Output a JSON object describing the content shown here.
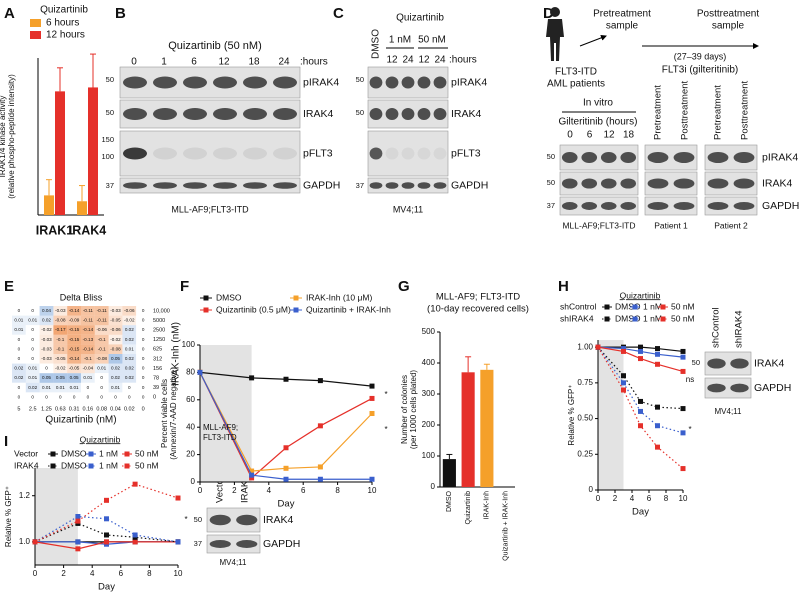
{
  "panel_labels": [
    "A",
    "B",
    "C",
    "D",
    "E",
    "F",
    "G",
    "H",
    "I"
  ],
  "blots": {
    "B": {
      "title": "Quizartinib (50 nM)",
      "lanes": [
        0,
        1,
        6,
        12,
        18,
        24
      ],
      "lane_unit": ":hours",
      "rows": [
        "pIRAK4",
        "IRAK4",
        "pFLT3",
        "GAPDH"
      ],
      "markers": [
        50,
        50,
        150,
        100,
        37
      ],
      "caption": "MLL-AF9;FLT3-ITD"
    },
    "C": {
      "control": "DMSO",
      "treatment": "Quizartinib",
      "doses": [
        "1 nM",
        "50 nM"
      ],
      "lanes": [
        12,
        24,
        12,
        24
      ],
      "lane_unit": ":hours",
      "rows": [
        "pIRAK4",
        "IRAK4",
        "pFLT3",
        "GAPDH"
      ],
      "markers": [
        50,
        50,
        37
      ],
      "caption": "MV4;11"
    },
    "D": {
      "patients_label": [
        "FLT3-ITD",
        "AML patients"
      ],
      "pre_sample": [
        "Pretreatment",
        "sample"
      ],
      "post_sample": [
        "Posttreatment",
        "sample"
      ],
      "interval": "(27–39 days)",
      "drug": "FLT3i (gilteritinib)",
      "in_vitro": "In vitro",
      "lanes_title": "Gilteritinib (hours)",
      "lanes": [
        0,
        6,
        12,
        18
      ],
      "patient_lanes": [
        "Pretreatment",
        "Posttreatment"
      ],
      "rows": [
        "pIRAK4",
        "IRAK4",
        "GAPDH"
      ],
      "markers": [
        50,
        50,
        37
      ],
      "captions": [
        "MLL-AF9;FLT3-ITD",
        "Patient 1",
        "Patient 2"
      ]
    },
    "H": {
      "lanes": [
        "shControl",
        "shIRAK4"
      ],
      "rows": [
        "IRAK4",
        "GAPDH"
      ],
      "markers": [
        50
      ],
      "caption": "MV4;11"
    },
    "I": {
      "lanes": [
        "Vector",
        "IRAK4"
      ],
      "rows": [
        "IRAK4",
        "GAPDH"
      ],
      "markers": [
        50,
        37
      ],
      "caption": "MV4;11"
    }
  },
  "chart_data": [
    {
      "type": "bar",
      "legend_title": "Quizartinib",
      "ylabel": [
        "IRAK1/4 kinase activity",
        "(relative phospho-peptide intensity)"
      ],
      "categories": [
        "IRAK1",
        "IRAK4"
      ],
      "ylim": [
        0,
        0.8
      ],
      "series": [
        {
          "name": "6 hours",
          "color": "#f5a02a",
          "values": [
            0.1,
            0.07
          ],
          "errors": [
            0.08,
            0.08
          ]
        },
        {
          "name": "12 hours",
          "color": "#e5302a",
          "values": [
            0.63,
            0.65
          ],
          "errors": [
            0.12,
            0.17
          ]
        }
      ]
    },
    {
      "type": "heatmap",
      "title": "Delta Bliss",
      "xlabel": "Quizartinib (nM)",
      "ylabel": "IRAK-Inh (nM)",
      "x_labels": [
        5,
        2.5,
        1.25,
        0.63,
        0.31,
        0.16,
        0.08,
        0.04,
        0.02,
        0
      ],
      "y_labels": [
        {
          "value": 10000,
          "label": "10,000"
        },
        5000,
        2500,
        1250,
        625,
        312,
        156,
        78,
        39,
        0
      ],
      "values": [
        [
          0,
          0,
          0.04,
          -0.03,
          -0.14,
          -0.11,
          -0.11,
          -0.03,
          -0.06,
          0
        ],
        [
          0.01,
          0.01,
          0.02,
          -0.08,
          -0.09,
          -0.11,
          -0.11,
          -0.05,
          -0.02,
          0
        ],
        [
          0.01,
          0,
          -0.02,
          -0.17,
          -0.15,
          -0.14,
          -0.06,
          -0.06,
          0.02,
          0
        ],
        [
          0,
          0,
          -0.03,
          -0.1,
          -0.15,
          -0.13,
          -0.1,
          -0.02,
          0.02,
          0
        ],
        [
          0,
          0,
          -0.03,
          -0.1,
          -0.15,
          -0.14,
          -0.1,
          -0.08,
          0.01,
          0
        ],
        [
          0,
          0,
          -0.03,
          -0.05,
          -0.14,
          -0.1,
          -0.08,
          0.05,
          0.02,
          0
        ],
        [
          0.02,
          0.01,
          0,
          -0.02,
          -0.05,
          -0.04,
          0.01,
          0.02,
          0.02,
          0
        ],
        [
          0.02,
          0.01,
          0.05,
          0.05,
          0.05,
          0.01,
          0,
          0.02,
          0.02,
          0
        ],
        [
          0,
          0.02,
          0.01,
          0.01,
          0.01,
          0,
          0,
          0.01,
          0,
          0
        ],
        [
          0,
          0,
          0,
          0,
          0,
          0,
          0,
          0,
          0,
          0
        ]
      ]
    },
    {
      "type": "line",
      "xlabel": "Day",
      "ylabel": [
        "Percent viable cells",
        "(Annexin/7-AAD negative)"
      ],
      "xlim": [
        0,
        10
      ],
      "ylim": [
        0,
        100
      ],
      "xticks": [
        0,
        2,
        4,
        6,
        8,
        10
      ],
      "yticks": [
        0,
        20,
        40,
        60,
        80,
        100
      ],
      "shaded_x": [
        0,
        3
      ],
      "annotations": [
        "MLL-AF9;",
        "FLT3-ITD",
        "*",
        "*"
      ],
      "x": [
        0,
        3,
        5,
        7,
        10
      ],
      "series": [
        {
          "name": "DMSO",
          "color": "#111111",
          "line_style": "solid",
          "values": [
            80,
            76,
            75,
            74,
            70
          ]
        },
        {
          "name": "Quizartinib (0.5 μM)",
          "color": "#e5302a",
          "line_style": "solid",
          "values": [
            80,
            3,
            25,
            41,
            61
          ]
        },
        {
          "name": "IRAK-Inh (10 μM)",
          "color": "#f5a02a",
          "line_style": "solid",
          "values": [
            80,
            8,
            10,
            11,
            50
          ]
        },
        {
          "name": "Quizartinib + IRAK-Inh",
          "color": "#3a5fcd",
          "line_style": "solid",
          "values": [
            80,
            5,
            2,
            2,
            2
          ]
        }
      ]
    },
    {
      "type": "bar",
      "title": [
        "MLL-AF9; FLT3-ITD",
        "(10-day recovered cells)"
      ],
      "ylabel": [
        "Number of colonies",
        "(per 1000 cells plated)"
      ],
      "categories": [
        "DMSO",
        "Quizartinib",
        "IRAK-Inh",
        "Quizartinib + IRAK-Inh"
      ],
      "values": [
        90,
        370,
        378,
        0
      ],
      "errors": [
        15,
        50,
        18,
        0
      ],
      "colors": [
        "#111111",
        "#e5302a",
        "#f5a02a",
        "#3a5fcd"
      ],
      "ylim": [
        0,
        500
      ],
      "yticks": [
        0,
        100,
        200,
        300,
        400,
        500
      ]
    },
    {
      "type": "line",
      "legend_title": "Quizartinib",
      "xlabel": "Day",
      "ylabel": [
        "Relative % GFP⁺"
      ],
      "xlim": [
        0,
        10
      ],
      "ylim": [
        0,
        1.05
      ],
      "xticks": [
        0,
        2,
        4,
        6,
        8,
        10
      ],
      "yticks": [
        0,
        0.25,
        {
          "value": 0.5,
          "label": "0.50"
        },
        {
          "value": 0.75,
          "label": "0.75"
        },
        {
          "value": 1,
          "label": "1.00"
        }
      ],
      "shaded_x": [
        0,
        3
      ],
      "annotations": [
        "ns",
        "*"
      ],
      "x": [
        0,
        3,
        5,
        7,
        10
      ],
      "groups": [
        {
          "name": "shControl",
          "series": [
            {
              "name": "DMSO",
              "color": "#111111",
              "line_style": "solid",
              "values": [
                1,
                1,
                1,
                0.99,
                0.97
              ]
            },
            {
              "name": "1 nM",
              "color": "#3a5fcd",
              "line_style": "solid",
              "values": [
                1,
                0.99,
                0.97,
                0.95,
                0.93
              ]
            },
            {
              "name": "50 nM",
              "color": "#e5302a",
              "line_style": "solid",
              "values": [
                1,
                0.97,
                0.92,
                0.88,
                0.83
              ]
            }
          ]
        },
        {
          "name": "shIRAK4",
          "series": [
            {
              "name": "DMSO",
              "color": "#111111",
              "line_style": "dotted",
              "values": [
                1,
                0.8,
                0.62,
                0.58,
                0.57
              ]
            },
            {
              "name": "1 nM",
              "color": "#3a5fcd",
              "line_style": "dotted",
              "values": [
                1,
                0.75,
                0.55,
                0.45,
                0.4
              ]
            },
            {
              "name": "50 nM",
              "color": "#e5302a",
              "line_style": "dotted",
              "values": [
                1,
                0.7,
                0.45,
                0.3,
                0.15
              ]
            }
          ]
        }
      ]
    },
    {
      "type": "line",
      "legend_title": "Quizartinib",
      "xlabel": "Day",
      "ylabel": [
        "Relative % GFP⁺"
      ],
      "xlim": [
        0,
        10
      ],
      "ylim": [
        0.9,
        1.32
      ],
      "xticks": [
        0,
        2,
        4,
        6,
        8,
        10
      ],
      "yticks": [
        {
          "value": 1,
          "label": "1.0"
        },
        {
          "value": 1.2,
          "label": "1.2"
        }
      ],
      "shaded_x": [
        0,
        3
      ],
      "annotations": [
        "*"
      ],
      "x": [
        0,
        3,
        5,
        7,
        10
      ],
      "groups": [
        {
          "name": "Vector",
          "series": [
            {
              "name": "DMSO",
              "color": "#111111",
              "line_style": "solid",
              "values": [
                1,
                1,
                1,
                1,
                1
              ]
            },
            {
              "name": "1 nM",
              "color": "#3a5fcd",
              "line_style": "solid",
              "values": [
                1,
                1,
                0.99,
                1,
                1
              ]
            },
            {
              "name": "50 nM",
              "color": "#e5302a",
              "line_style": "solid",
              "values": [
                1,
                0.97,
                1,
                1,
                1
              ]
            }
          ]
        },
        {
          "name": "IRAK4",
          "series": [
            {
              "name": "DMSO",
              "color": "#111111",
              "line_style": "dotted",
              "values": [
                1,
                1.08,
                1.03,
                1.02,
                1
              ]
            },
            {
              "name": "1 nM",
              "color": "#3a5fcd",
              "line_style": "dotted",
              "values": [
                1,
                1.11,
                1.1,
                1.03,
                1
              ]
            },
            {
              "name": "50 nM",
              "color": "#e5302a",
              "line_style": "dotted",
              "values": [
                1,
                1.09,
                1.18,
                1.25,
                1.19
              ]
            }
          ]
        }
      ]
    }
  ]
}
